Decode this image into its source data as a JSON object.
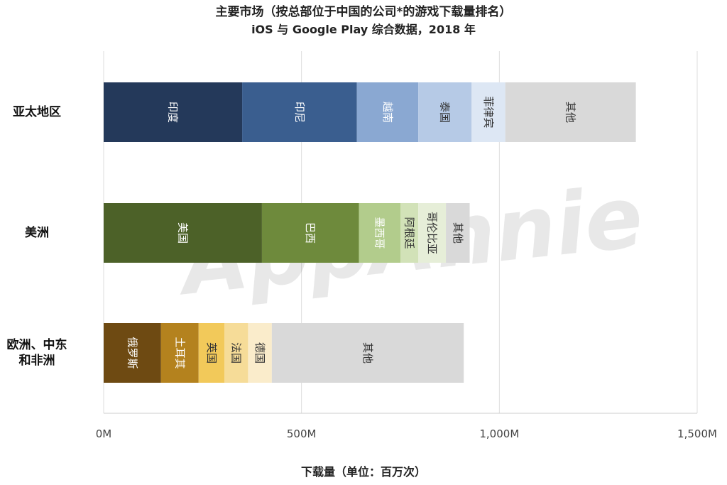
{
  "chart_data": {
    "type": "bar",
    "orientation": "horizontal",
    "stacked": true,
    "title": "主要市场（按总部位于中国的公司*的游戏下载量排名）",
    "subtitle": "iOS 与 Google Play 综合数据，2018 年",
    "xlabel": "下载量（单位：百万次）",
    "ylabel": "",
    "xlim": [
      0,
      1500
    ],
    "xticks": [
      0,
      500,
      1000,
      1500
    ],
    "xtick_labels": [
      "0M",
      "500M",
      "1,000M",
      "1,500M"
    ],
    "grid": true,
    "watermark": "AppAnnie",
    "categories": [
      {
        "label_lines": [
          "亚太地区"
        ],
        "segments": [
          {
            "name": "印度",
            "value": 350,
            "color": "#24395a",
            "text_color": "#ffffff"
          },
          {
            "name": "印尼",
            "value": 290,
            "color": "#3a5e8f",
            "text_color": "#ffffff"
          },
          {
            "name": "越南",
            "value": 155,
            "color": "#8aa8d2",
            "text_color": "#ffffff"
          },
          {
            "name": "泰国",
            "value": 135,
            "color": "#b6cae6",
            "text_color": "#333333"
          },
          {
            "name": "菲律宾",
            "value": 85,
            "color": "#dde7f4",
            "text_color": "#333333"
          },
          {
            "name": "其他",
            "value": 330,
            "color": "#d9d9d9",
            "text_color": "#333333"
          }
        ]
      },
      {
        "label_lines": [
          "美洲"
        ],
        "segments": [
          {
            "name": "美国",
            "value": 400,
            "color": "#4c6128",
            "text_color": "#ffffff"
          },
          {
            "name": "巴西",
            "value": 245,
            "color": "#6e8a3c",
            "text_color": "#ffffff"
          },
          {
            "name": "墨西哥",
            "value": 105,
            "color": "#b2cc8c",
            "text_color": "#ffffff"
          },
          {
            "name": "阿根廷",
            "value": 45,
            "color": "#d2e2b8",
            "text_color": "#333333"
          },
          {
            "name": "哥伦比亚",
            "value": 70,
            "color": "#e6eed8",
            "text_color": "#333333"
          },
          {
            "name": "其他",
            "value": 60,
            "color": "#d9d9d9",
            "text_color": "#333333"
          }
        ]
      },
      {
        "label_lines": [
          "欧洲、中东",
          "和非洲"
        ],
        "segments": [
          {
            "name": "俄罗斯",
            "value": 145,
            "color": "#6e4a12",
            "text_color": "#ffffff"
          },
          {
            "name": "土耳其",
            "value": 95,
            "color": "#b4821e",
            "text_color": "#ffffff"
          },
          {
            "name": "英国",
            "value": 65,
            "color": "#f2c95a",
            "text_color": "#333333"
          },
          {
            "name": "法国",
            "value": 60,
            "color": "#f6dc98",
            "text_color": "#333333"
          },
          {
            "name": "德国",
            "value": 60,
            "color": "#faeccb",
            "text_color": "#333333"
          },
          {
            "name": "其他",
            "value": 485,
            "color": "#d9d9d9",
            "text_color": "#333333"
          }
        ]
      }
    ]
  }
}
